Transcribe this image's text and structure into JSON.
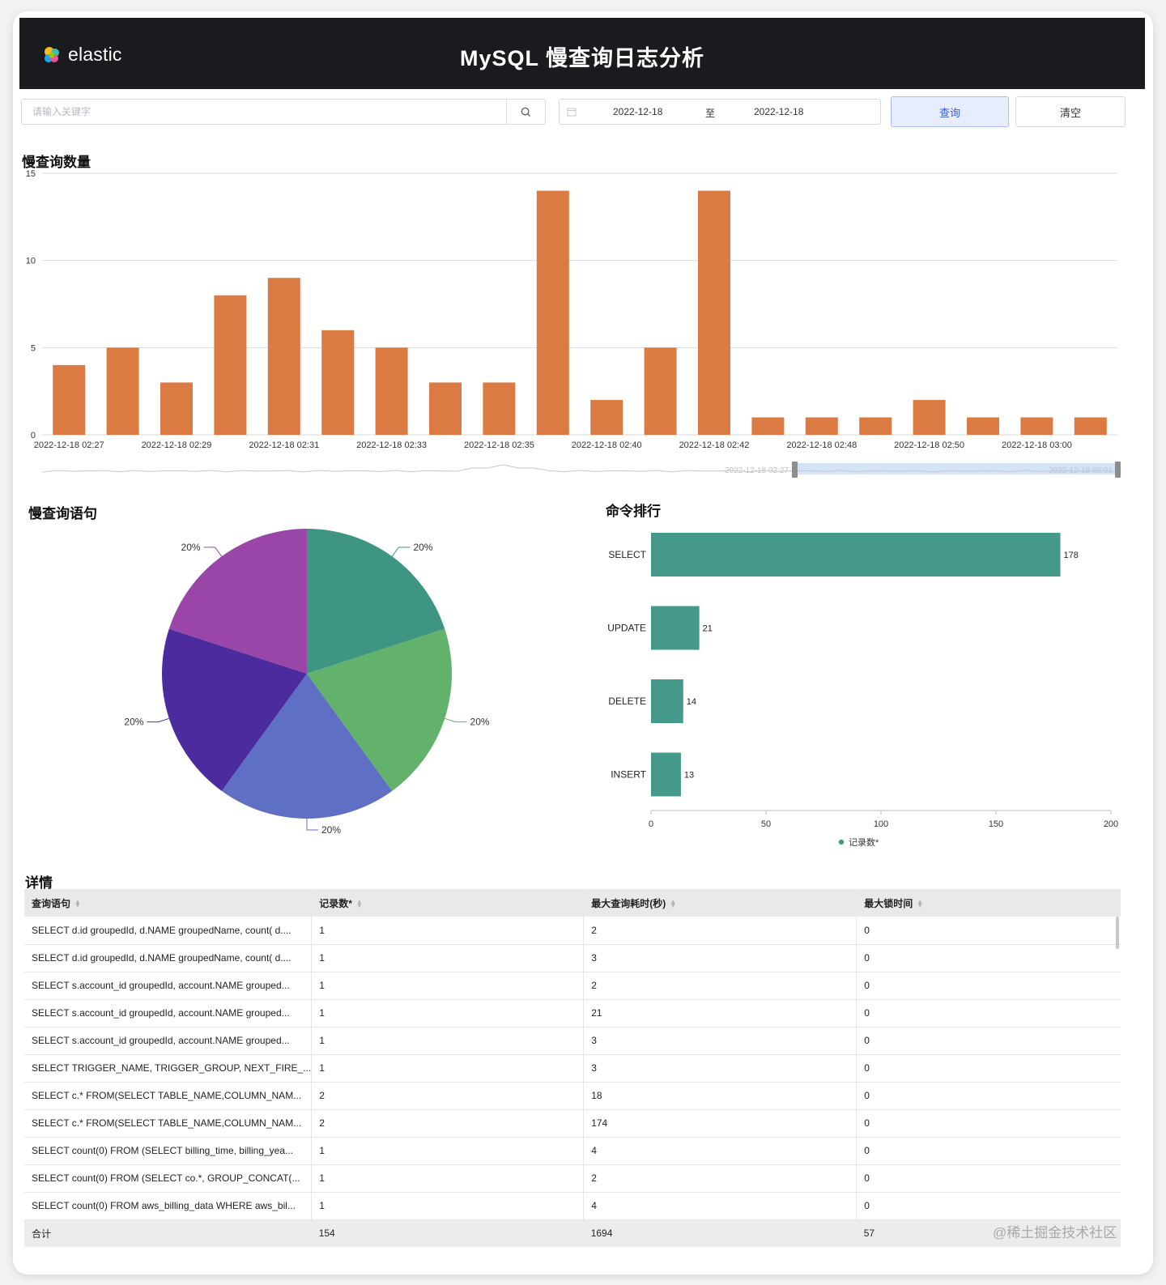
{
  "header": {
    "logo_text": "elastic",
    "title": "MySQL 慢查询日志分析"
  },
  "search": {
    "placeholder": "请输入关键字",
    "value": ""
  },
  "date_range": {
    "start": "2022-12-18",
    "separator": "至",
    "end": "2022-12-18"
  },
  "buttons": {
    "query": "查询",
    "clear": "清空"
  },
  "bar_panel": {
    "title": "慢查询数量",
    "zoom_start_label": "2022-12-18 02:27",
    "zoom_end_label": "2022-12-18 03:01"
  },
  "pie_panel": {
    "title": "慢查询语句"
  },
  "rank_panel": {
    "title": "命令排行"
  },
  "table_panel": {
    "title": "详情"
  },
  "chart_data": [
    {
      "type": "bar",
      "title": "慢查询数量",
      "ylim": [
        0,
        15
      ],
      "y_ticks": [
        0,
        5,
        10,
        15
      ],
      "x_tick_labels": [
        "2022-12-18 02:27",
        "2022-12-18 02:29",
        "2022-12-18 02:31",
        "2022-12-18 02:33",
        "2022-12-18 02:35",
        "2022-12-18 02:40",
        "2022-12-18 02:42",
        "2022-12-18 02:48",
        "2022-12-18 02:50",
        "2022-12-18 03:00"
      ],
      "values": [
        4,
        5,
        3,
        8,
        9,
        6,
        5,
        3,
        3,
        14,
        2,
        5,
        14,
        1,
        1,
        1,
        2,
        1,
        1,
        1
      ],
      "color": "#dc7a43"
    },
    {
      "type": "pie",
      "title": "慢查询语句",
      "values": [
        20,
        20,
        20,
        20,
        20
      ],
      "labels": [
        "20%",
        "20%",
        "20%",
        "20%",
        "20%"
      ],
      "colors": [
        "#3d9582",
        "#62b26c",
        "#5f6fc4",
        "#4b2b9e",
        "#9a45a8"
      ]
    },
    {
      "type": "bar",
      "orientation": "horizontal",
      "title": "命令排行",
      "categories": [
        "SELECT",
        "UPDATE",
        "DELETE",
        "INSERT"
      ],
      "series": [
        {
          "name": "记录数*",
          "values": [
            178,
            21,
            14,
            13
          ]
        }
      ],
      "xlim": [
        0,
        200
      ],
      "x_ticks": [
        0,
        50,
        100,
        150,
        200
      ],
      "color": "#45998b"
    }
  ],
  "table": {
    "columns": [
      "查询语句",
      "记录数*",
      "最大查询耗时(秒)",
      "最大锁时间"
    ],
    "rows": [
      [
        "SELECT d.id groupedId, d.NAME groupedName, count( d....",
        "1",
        "2",
        "0"
      ],
      [
        "SELECT d.id groupedId, d.NAME groupedName, count( d....",
        "1",
        "3",
        "0"
      ],
      [
        "SELECT s.account_id groupedId, account.NAME grouped...",
        "1",
        "2",
        "0"
      ],
      [
        "SELECT s.account_id groupedId, account.NAME grouped...",
        "1",
        "21",
        "0"
      ],
      [
        "SELECT s.account_id groupedId, account.NAME grouped...",
        "1",
        "3",
        "0"
      ],
      [
        "SELECT TRIGGER_NAME, TRIGGER_GROUP, NEXT_FIRE_...",
        "1",
        "3",
        "0"
      ],
      [
        "SELECT c.* FROM(SELECT TABLE_NAME,COLUMN_NAM...",
        "2",
        "18",
        "0"
      ],
      [
        "SELECT c.* FROM(SELECT TABLE_NAME,COLUMN_NAM...",
        "2",
        "174",
        "0"
      ],
      [
        "SELECT count(0) FROM (SELECT billing_time, billing_yea...",
        "1",
        "4",
        "0"
      ],
      [
        "SELECT count(0) FROM (SELECT co.*, GROUP_CONCAT(...",
        "1",
        "2",
        "0"
      ],
      [
        "SELECT count(0) FROM aws_billing_data WHERE aws_bil...",
        "1",
        "4",
        "0"
      ]
    ],
    "total": [
      "合计",
      "154",
      "1694",
      "57"
    ]
  },
  "watermark": "@稀土掘金技术社区",
  "colors": {
    "header_bg": "#1a1b1e",
    "bar": "#dc7a43",
    "rank_bar": "#45998b",
    "query_btn_bg": "#e6edfd"
  }
}
